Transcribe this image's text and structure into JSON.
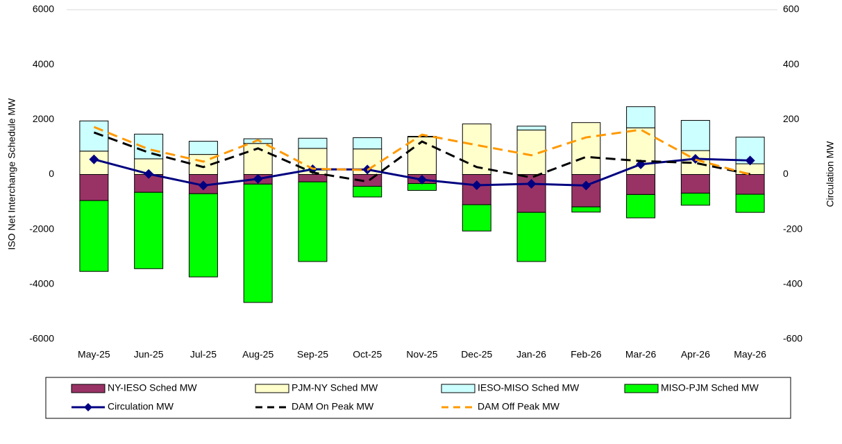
{
  "chart_data": {
    "type": "bar",
    "y_label": "ISO Net Interchange Schedule MW",
    "y2_label": "Circulation MW",
    "categories": [
      "May-25",
      "Jun-25",
      "Jul-25",
      "Aug-25",
      "Sep-25",
      "Oct-25",
      "Nov-25",
      "Dec-25",
      "Jan-26",
      "Feb-26",
      "Mar-26",
      "Apr-26",
      "May-26"
    ],
    "ylim": [
      -6000,
      6000
    ],
    "yticks": [
      -6000,
      -4000,
      -2000,
      0,
      2000,
      4000,
      6000
    ],
    "y2lim": [
      -600,
      600
    ],
    "y2ticks": [
      -600,
      -400,
      -200,
      0,
      200,
      400,
      600
    ],
    "grid": false,
    "series": [
      {
        "name": "NY-IESO Sched MW",
        "type": "bar",
        "color": "#993366",
        "values": [
          -950,
          -650,
          -700,
          -350,
          -270,
          -430,
          -330,
          -1100,
          -1380,
          -1180,
          -730,
          -680,
          -720
        ]
      },
      {
        "name": "PJM-NY Sched MW",
        "type": "bar",
        "color": "#ffffcc",
        "values": [
          850,
          570,
          730,
          1130,
          950,
          930,
          1370,
          1840,
          1620,
          1890,
          1700,
          870,
          390
        ]
      },
      {
        "name": "IESO-MISO Sched MW",
        "type": "bar",
        "color": "#ccffff",
        "values": [
          1100,
          900,
          480,
          170,
          370,
          410,
          20,
          0,
          140,
          0,
          770,
          1100,
          970
        ]
      },
      {
        "name": "MISO-PJM Sched MW",
        "type": "bar",
        "color": "#00ff00",
        "values": [
          -2580,
          -2780,
          -3030,
          -4310,
          -2900,
          -390,
          -250,
          -960,
          -1790,
          -190,
          -850,
          -440,
          -660
        ]
      },
      {
        "name": "Circulation MW",
        "type": "line",
        "axis": "y2",
        "color": "#000080",
        "marker": "diamond",
        "dashed": false,
        "values": [
          55,
          2,
          -40,
          -16,
          19,
          18,
          -19,
          -39,
          -34,
          -40,
          37,
          57,
          51
        ]
      },
      {
        "name": "DAM On Peak MW",
        "type": "line",
        "axis": "y2",
        "color": "#000000",
        "dashed": true,
        "values": [
          153,
          80,
          27,
          95,
          7,
          -26,
          120,
          27,
          -11,
          64,
          49,
          42,
          1
        ]
      },
      {
        "name": "DAM Off Peak MW",
        "type": "line",
        "axis": "y2",
        "color": "#ff9900",
        "dashed": true,
        "values": [
          173,
          92,
          47,
          125,
          21,
          16,
          145,
          107,
          70,
          135,
          163,
          54,
          0
        ]
      }
    ]
  }
}
